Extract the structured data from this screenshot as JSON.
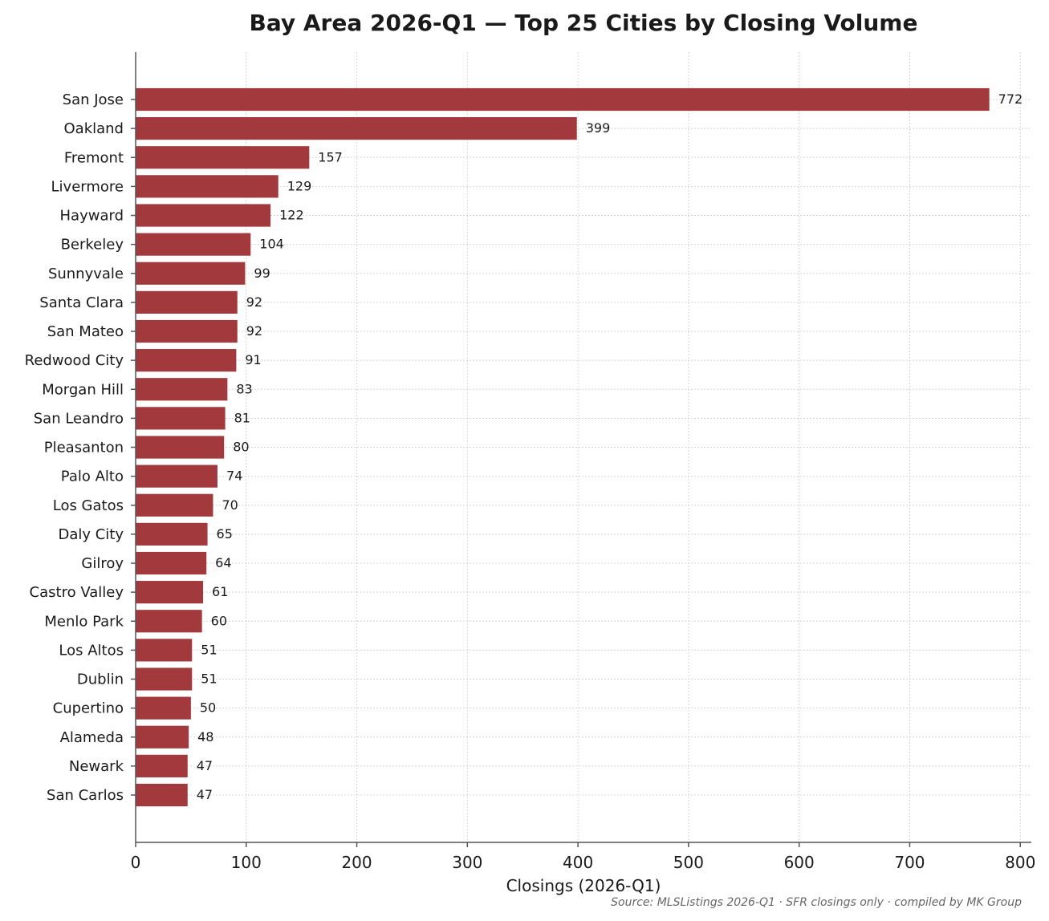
{
  "chart_data": {
    "type": "bar",
    "orientation": "horizontal",
    "title": "Bay Area 2026-Q1 — Top 25 Cities by Closing Volume",
    "xlabel": "Closings (2026-Q1)",
    "ylabel": "",
    "xlim": [
      0,
      810
    ],
    "xticks": [
      0,
      100,
      200,
      300,
      400,
      500,
      600,
      700,
      800
    ],
    "grid": true,
    "bar_color": "#a23a3d",
    "categories": [
      "San Jose",
      "Oakland",
      "Fremont",
      "Livermore",
      "Hayward",
      "Berkeley",
      "Sunnyvale",
      "Santa Clara",
      "San Mateo",
      "Redwood City",
      "Morgan Hill",
      "San Leandro",
      "Pleasanton",
      "Palo Alto",
      "Los Gatos",
      "Daly City",
      "Gilroy",
      "Castro Valley",
      "Menlo Park",
      "Los Altos",
      "Dublin",
      "Cupertino",
      "Alameda",
      "Newark",
      "San Carlos"
    ],
    "values": [
      772,
      399,
      157,
      129,
      122,
      104,
      99,
      92,
      92,
      91,
      83,
      81,
      80,
      74,
      70,
      65,
      64,
      61,
      60,
      51,
      51,
      50,
      48,
      47,
      47
    ],
    "source": "Source: MLSListings 2026-Q1 · SFR closings only · compiled by MK Group"
  }
}
